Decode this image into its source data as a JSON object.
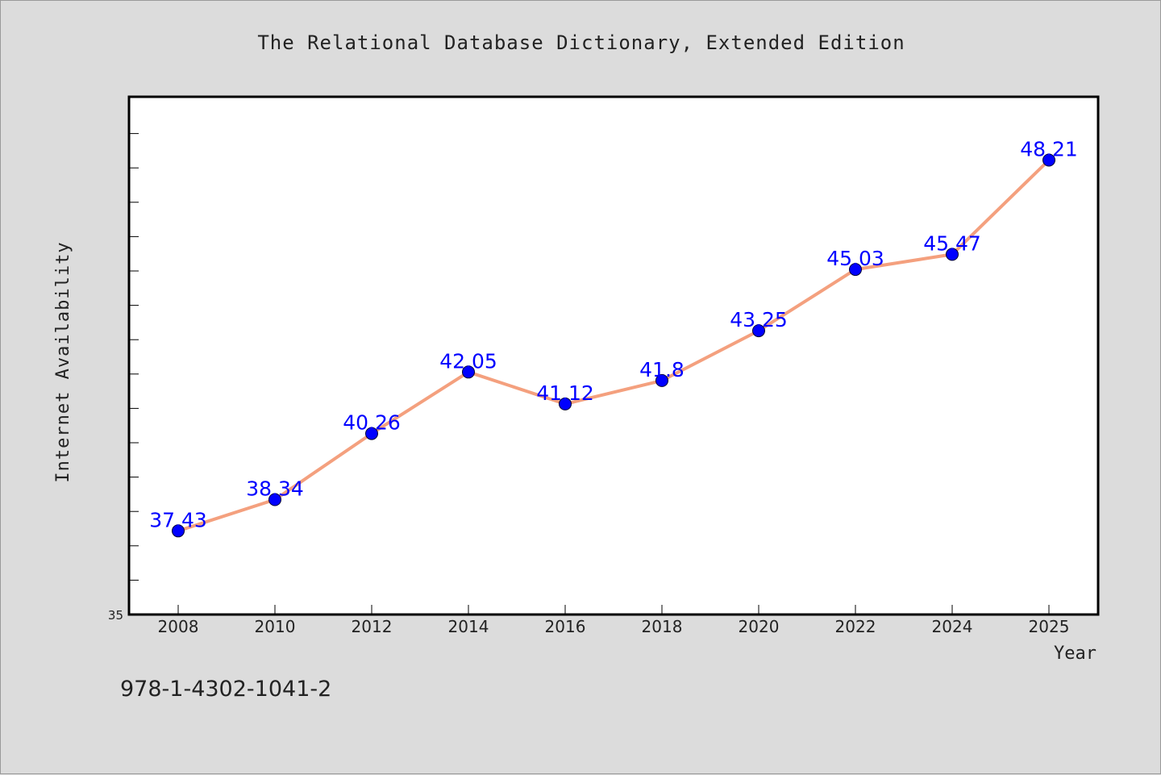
{
  "colors": {
    "background": "#dcdcdc",
    "plot_background": "#ffffff",
    "line": "#f4a07e",
    "marker": "#0000ff",
    "data_label": "#0000ff",
    "text": "#222222"
  },
  "isbn": "978-1-4302-1041-2",
  "chart_data": {
    "type": "line",
    "title": "The Relational Database Dictionary, Extended Edition",
    "xlabel": "Year",
    "ylabel": "Internet Availability",
    "categories": [
      "2008",
      "2010",
      "2012",
      "2014",
      "2016",
      "2018",
      "2020",
      "2022",
      "2024",
      "2025"
    ],
    "series": [
      {
        "values": [
          37.43,
          38.34,
          40.26,
          42.05,
          41.12,
          41.8,
          43.25,
          45.03,
          45.47,
          48.21
        ],
        "labels": [
          "37.43",
          "38.34",
          "40.26",
          "42.05",
          "41.12",
          "41.8",
          "43.25",
          "45.03",
          "45.47",
          "48.21"
        ]
      }
    ],
    "ylim": [
      35,
      50.05
    ],
    "y_tick_label": "35",
    "grid": false,
    "legend": "none"
  }
}
